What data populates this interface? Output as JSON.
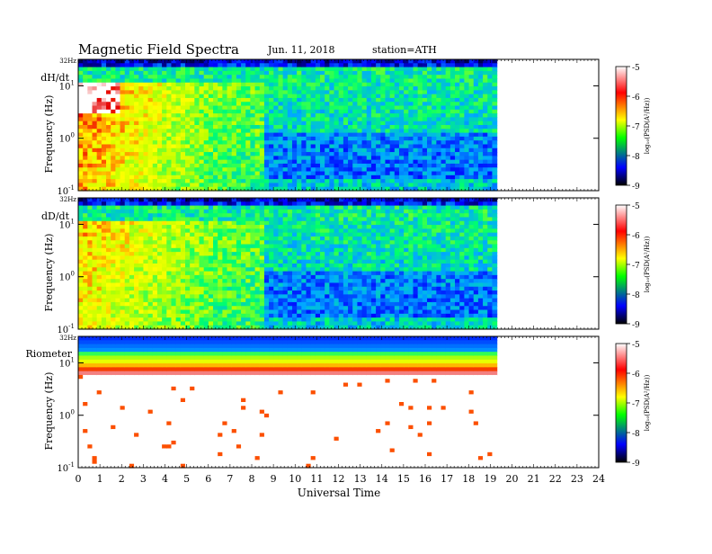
{
  "header": {
    "title": "Magnetic  Field  Spectra",
    "date": "Jun. 11, 2018",
    "station": "station=ATH"
  },
  "chart_data": {
    "type": "heatmap",
    "xlabel": "Universal Time",
    "xlim": [
      0,
      24
    ],
    "x_ticks": [
      "0",
      "1",
      "2",
      "3",
      "4",
      "5",
      "6",
      "7",
      "8",
      "9",
      "10",
      "11",
      "12",
      "13",
      "14",
      "15",
      "16",
      "17",
      "18",
      "19",
      "20",
      "21",
      "22",
      "23",
      "24"
    ],
    "data_end_hour": 19.3,
    "y_scale": "log",
    "ylabel": "Frequency  (Hz)",
    "ylim_hz": [
      0.1,
      32
    ],
    "y_ticks": [
      {
        "label": "10",
        "exp": "1",
        "value": 10
      },
      {
        "label": "10",
        "exp": "0",
        "value": 1
      },
      {
        "label": "10",
        "exp": "-1",
        "value": 0.1
      }
    ],
    "y_top_label": "32Hz",
    "colorbar": {
      "label": "log₁₀(PSD(A²/Hz))",
      "min": -9,
      "max": -5,
      "ticks": [
        "-5",
        "-6",
        "-7",
        "-8",
        "-9"
      ],
      "colors": [
        "#ffffff",
        "#ff0000",
        "#ffff00",
        "#00ff00",
        "#0000ff",
        "#000000"
      ]
    },
    "panels": [
      {
        "name": "dH/dt"
      },
      {
        "name": "dD/dt"
      },
      {
        "name": "Riometer"
      }
    ]
  }
}
